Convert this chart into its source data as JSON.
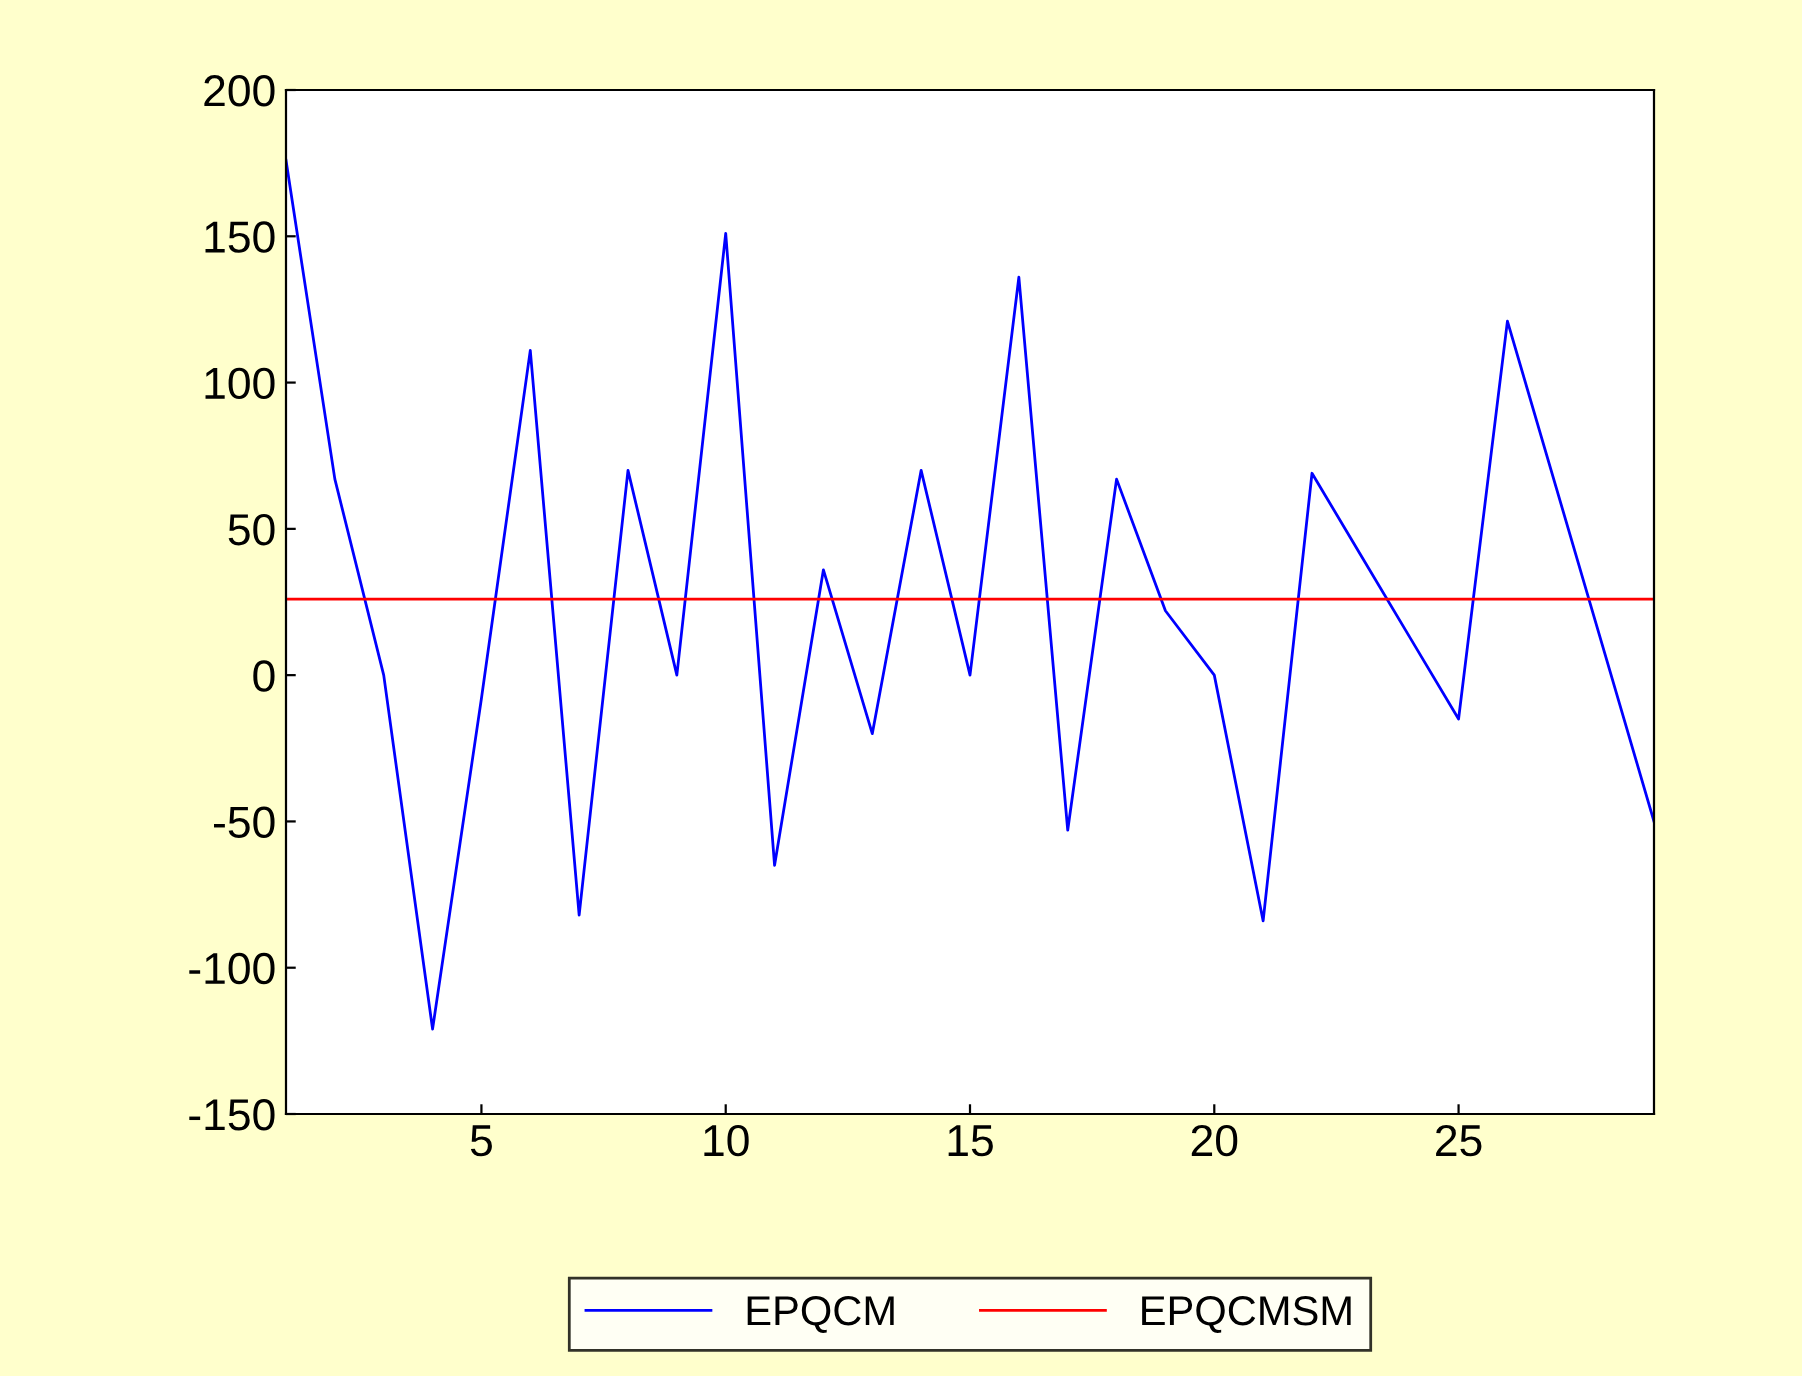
{
  "chart_data": {
    "type": "line",
    "x": [
      1,
      2,
      3,
      4,
      5,
      6,
      7,
      8,
      9,
      10,
      11,
      12,
      13,
      14,
      15,
      16,
      17,
      18,
      19,
      20,
      21,
      22,
      23,
      24,
      25,
      26,
      27,
      28,
      29
    ],
    "series": [
      {
        "name": "EPQCM",
        "color": "#0000ff",
        "values": [
          176,
          67,
          0,
          -121,
          -8,
          111,
          -82,
          70,
          0,
          151,
          -65,
          36,
          -20,
          70,
          0,
          136,
          -53,
          67,
          22,
          0,
          -84,
          69,
          41,
          13,
          -15,
          121,
          64,
          7,
          -50
        ]
      },
      {
        "name": "EPQCMSM",
        "color": "#ff0000",
        "values": [
          26,
          26,
          26,
          26,
          26,
          26,
          26,
          26,
          26,
          26,
          26,
          26,
          26,
          26,
          26,
          26,
          26,
          26,
          26,
          26,
          26,
          26,
          26,
          26,
          26,
          26,
          26,
          26,
          26
        ]
      }
    ],
    "xlim": [
      1,
      29
    ],
    "xticks": [
      5,
      10,
      15,
      20,
      25
    ],
    "ylim": [
      -150,
      200
    ],
    "yticks": [
      -150,
      -100,
      -50,
      0,
      50,
      100,
      150,
      200
    ],
    "grid": false,
    "legend": "bottom",
    "marker": "none",
    "line_style": "solid"
  }
}
